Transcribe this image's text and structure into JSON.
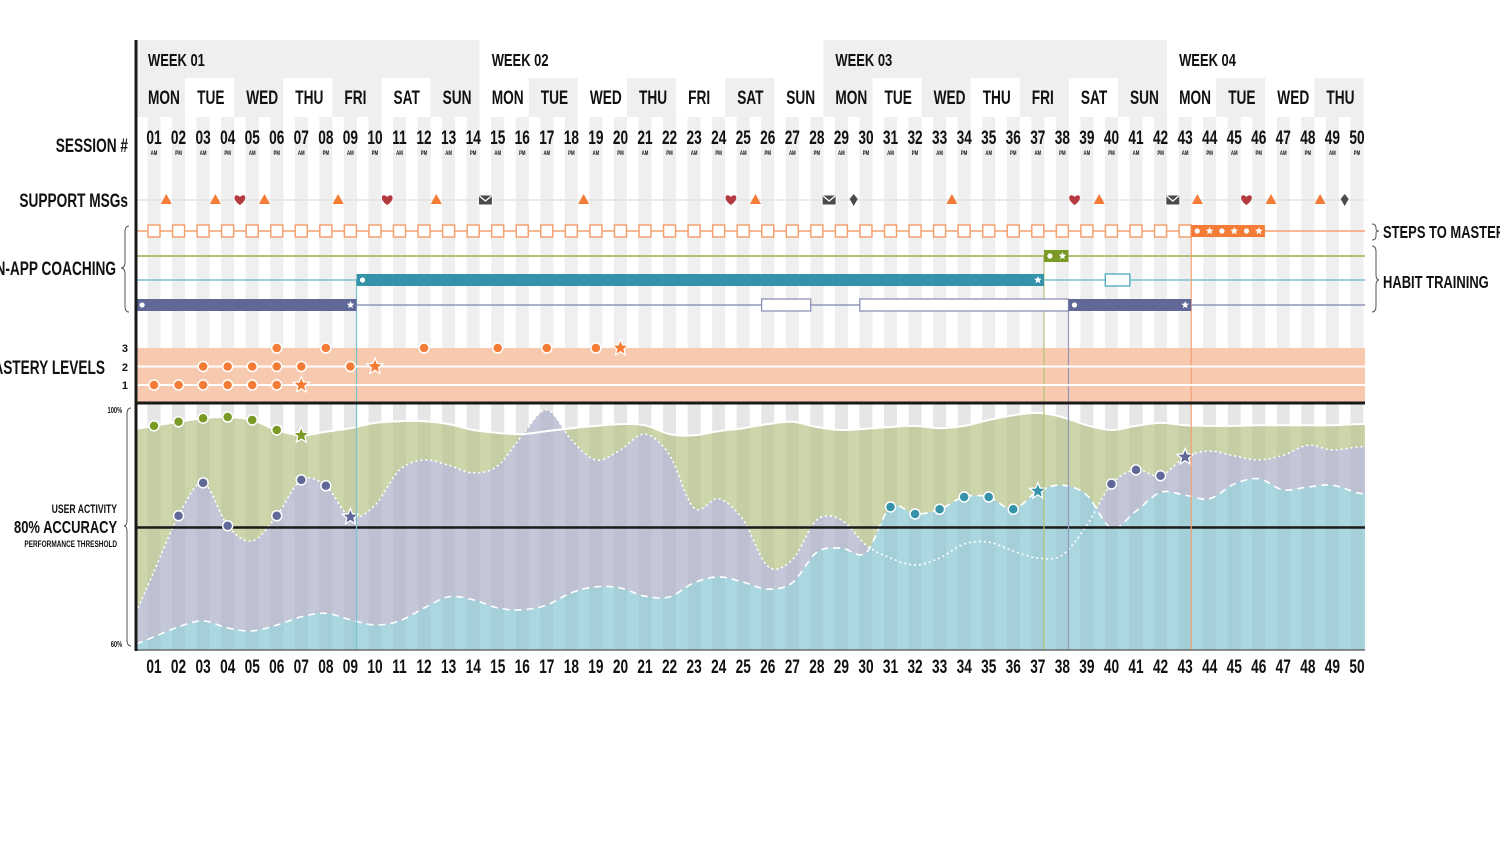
{
  "labels": {
    "session": "SESSION #",
    "support": "SUPPORT MSGs",
    "coaching": "IN-APP COACHING",
    "mastery": "MASTERY LEVELS",
    "activity": "USER ACTIVITY",
    "accuracy": "80% ACCURACY",
    "threshold": "PERFORMANCE THRESHOLD",
    "y_top": "100%",
    "y_bottom": "60%",
    "steps": "STEPS TO MASTERY",
    "habit": "HABIT TRAINING"
  },
  "weeks": [
    "WEEK 01",
    "WEEK 02",
    "WEEK 03",
    "WEEK 04"
  ],
  "days": [
    "MON",
    "TUE",
    "WED",
    "THU",
    "FRI",
    "SAT",
    "SUN",
    "MON",
    "TUE",
    "WED",
    "THU",
    "FRI",
    "SAT",
    "SUN",
    "MON",
    "TUE",
    "WED",
    "THU",
    "FRI",
    "SAT",
    "SUN",
    "MON",
    "TUE",
    "WED",
    "THU"
  ],
  "sessions": [
    "01",
    "02",
    "03",
    "04",
    "05",
    "06",
    "07",
    "08",
    "09",
    "10",
    "11",
    "12",
    "13",
    "14",
    "15",
    "16",
    "17",
    "18",
    "19",
    "20",
    "21",
    "22",
    "23",
    "24",
    "25",
    "26",
    "27",
    "28",
    "29",
    "30",
    "31",
    "32",
    "33",
    "34",
    "35",
    "36",
    "37",
    "38",
    "39",
    "40",
    "41",
    "42",
    "43",
    "44",
    "45",
    "46",
    "47",
    "48",
    "49",
    "50"
  ],
  "periods": [
    "AM",
    "PM"
  ],
  "colors": {
    "orange": "#f47c36",
    "heart": "#b53a3f",
    "dark": "#4b4b4b",
    "green_line": "#b3c07a",
    "green": "#7a9a26",
    "teal": "#3492a9",
    "purple": "#5f6896",
    "mastery_band": "#f7c9ae",
    "stripe": "#efefef"
  },
  "support_msgs": [
    {
      "at": 1.5,
      "icon": "triangle"
    },
    {
      "at": 3.5,
      "icon": "triangle"
    },
    {
      "at": 4.5,
      "icon": "heart"
    },
    {
      "at": 5.5,
      "icon": "triangle"
    },
    {
      "at": 8.5,
      "icon": "triangle"
    },
    {
      "at": 10.5,
      "icon": "heart"
    },
    {
      "at": 12.5,
      "icon": "triangle"
    },
    {
      "at": 14.5,
      "icon": "mail"
    },
    {
      "at": 18.5,
      "icon": "triangle"
    },
    {
      "at": 24.5,
      "icon": "heart"
    },
    {
      "at": 25.5,
      "icon": "triangle"
    },
    {
      "at": 28.5,
      "icon": "mail"
    },
    {
      "at": 29.5,
      "icon": "diamond"
    },
    {
      "at": 33.5,
      "icon": "triangle"
    },
    {
      "at": 38.5,
      "icon": "heart"
    },
    {
      "at": 39.5,
      "icon": "triangle"
    },
    {
      "at": 42.5,
      "icon": "mail"
    },
    {
      "at": 43.5,
      "icon": "triangle"
    },
    {
      "at": 45.5,
      "icon": "heart"
    },
    {
      "at": 46.5,
      "icon": "triangle"
    },
    {
      "at": 48.5,
      "icon": "triangle"
    },
    {
      "at": 49.5,
      "icon": "diamond"
    }
  ],
  "tracks": [
    {
      "key": "steps",
      "color": "#f47c36",
      "squares_through": 43,
      "items": [
        {
          "kind": "bar",
          "start": 43.25,
          "end": 46.25,
          "marks": [
            "dot",
            "star",
            "dot",
            "star",
            "dot",
            "star"
          ]
        }
      ]
    },
    {
      "key": "green",
      "color": "#7a9a26",
      "line": "#b3c07a",
      "items": [
        {
          "kind": "bar",
          "start": 37.25,
          "end": 38.25,
          "marks": [
            "dot",
            "star"
          ]
        }
      ]
    },
    {
      "key": "teal",
      "color": "#3492a9",
      "line": "#7cc1d0",
      "items": [
        {
          "kind": "bar",
          "start": 9.25,
          "end": 37.25,
          "marks": [
            "dot",
            "star"
          ]
        },
        {
          "kind": "outline",
          "start": 39.75,
          "end": 40.75,
          "marks": []
        }
      ]
    },
    {
      "key": "purple",
      "color": "#5f6896",
      "line": "#9097b8",
      "items": [
        {
          "kind": "bar",
          "start": 0.27,
          "end": 9.25,
          "marks": [
            "dot",
            "star"
          ]
        },
        {
          "kind": "outline",
          "start": 25.75,
          "end": 27.75,
          "marks": []
        },
        {
          "kind": "outline",
          "start": 29.75,
          "end": 38.25,
          "marks": []
        },
        {
          "kind": "bar",
          "start": 38.25,
          "end": 43.25,
          "marks": [
            "dot",
            "star"
          ]
        }
      ]
    }
  ],
  "milestones": [
    {
      "at": 9.25,
      "color": "#7cc1d0",
      "from_track": "teal"
    },
    {
      "at": 37.25,
      "color": "#b3c07a",
      "from_track": "green"
    },
    {
      "at": 38.25,
      "color": "#9097b8",
      "from_track": "purple"
    },
    {
      "at": 43.25,
      "color": "#f5a070",
      "from_track": "steps"
    }
  ],
  "mastery": {
    "level_labels": [
      "1",
      "2",
      "3"
    ],
    "points": [
      {
        "level": 1,
        "dots": [
          1,
          2,
          3,
          4,
          5,
          6
        ],
        "star": 7
      },
      {
        "level": 2,
        "dots": [
          3,
          4,
          5,
          6,
          7,
          9
        ],
        "star": 10
      },
      {
        "level": 3,
        "dots": [
          6,
          8,
          12,
          15,
          17,
          19
        ],
        "star": 20
      }
    ]
  },
  "chart_data": {
    "type": "area",
    "xlabel": "",
    "ylabel": "",
    "ylim": [
      60,
      100
    ],
    "threshold": 80,
    "x": [
      1,
      2,
      3,
      4,
      5,
      6,
      7,
      8,
      9,
      10,
      11,
      12,
      13,
      14,
      15,
      16,
      17,
      18,
      19,
      20,
      21,
      22,
      23,
      24,
      25,
      26,
      27,
      28,
      29,
      30,
      31,
      32,
      33,
      34,
      35,
      36,
      37,
      38,
      39,
      40,
      41,
      42,
      43,
      44,
      45,
      46,
      47,
      48,
      49,
      50
    ],
    "series": [
      {
        "fill": "#cdd5aa",
        "marker": "#7a9a26",
        "line_style": "solid",
        "values": [
          97.3,
          98.0,
          98.6,
          98.8,
          98.3,
          96.6,
          95.7,
          96.3,
          96.9,
          97.8,
          98.1,
          98.1,
          97.6,
          96.6,
          96.1,
          95.9,
          96.4,
          96.9,
          97.3,
          97.6,
          97.4,
          95.9,
          95.7,
          96.4,
          96.9,
          97.6,
          98.0,
          97.1,
          96.6,
          96.8,
          97.1,
          97.3,
          96.9,
          97.3,
          98.3,
          99.1,
          99.5,
          98.8,
          97.4,
          96.6,
          97.3,
          97.8,
          97.4,
          97.3,
          97.3,
          97.4,
          97.4,
          97.4,
          97.4,
          97.6
        ],
        "dots": [
          1,
          2,
          3,
          4,
          5,
          6
        ],
        "stars": [
          7
        ]
      },
      {
        "fill": "#c4c7d8",
        "marker": "#5f6896",
        "line_style": "dotted",
        "values": [
          72.5,
          82.0,
          87.6,
          80.3,
          77.7,
          82.0,
          88.1,
          87.1,
          81.8,
          83.8,
          89.8,
          91.5,
          90.6,
          89.3,
          90.5,
          95.7,
          100,
          94.9,
          91.5,
          93.2,
          95.9,
          92.3,
          83.3,
          84.9,
          81.3,
          73.4,
          74.5,
          81.3,
          81.3,
          77.0,
          74.8,
          73.6,
          74.8,
          77.2,
          77.5,
          76.0,
          74.8,
          75.3,
          80.4,
          87.4,
          89.8,
          88.8,
          92.0,
          93.0,
          92.2,
          91.5,
          92.3,
          94.0,
          93.2,
          93.7
        ],
        "dots": [
          2,
          3,
          4,
          6,
          7,
          8,
          40,
          41,
          42
        ],
        "stars": [
          9,
          43
        ]
      },
      {
        "fill": "#abd7e0",
        "marker": "#3492a9",
        "line_style": "dashed",
        "values": [
          61.4,
          63.1,
          64.1,
          62.9,
          62.4,
          63.4,
          64.8,
          65.4,
          64.3,
          63.4,
          64.1,
          66.3,
          68.2,
          67.7,
          66.3,
          66.0,
          66.8,
          68.9,
          69.9,
          69.7,
          68.3,
          68.2,
          70.6,
          71.6,
          70.7,
          69.5,
          70.6,
          75.8,
          76.5,
          75.7,
          83.5,
          82.3,
          83.1,
          85.2,
          85.2,
          83.1,
          86.2,
          87.2,
          85.5,
          79.9,
          82.8,
          86.0,
          85.5,
          84.9,
          87.4,
          88.3,
          86.4,
          86.9,
          87.2,
          85.9
        ],
        "dots": [
          31,
          32,
          33,
          34,
          35,
          36
        ],
        "stars": [
          37
        ]
      }
    ]
  }
}
